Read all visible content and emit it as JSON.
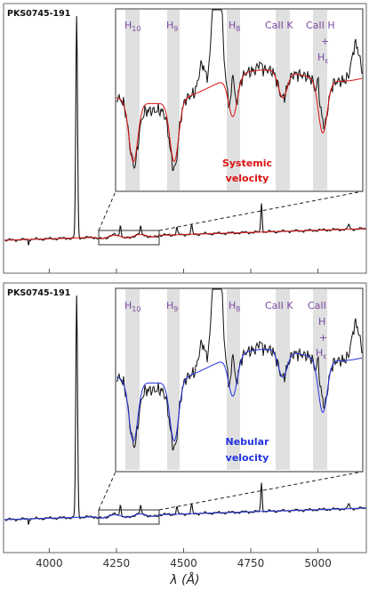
{
  "chart_data": {
    "type": "line",
    "xlabel": "λ (Å)",
    "xticks": [
      4000,
      4250,
      4500,
      4750,
      5000
    ],
    "xlim": [
      3830,
      5180
    ],
    "zoom_range": [
      4170,
      4410
    ],
    "panels": [
      {
        "object": "PKS0745-191",
        "velocity_label": [
          "Systemic",
          "velocity"
        ],
        "model_color": "#dd1111",
        "line_labels": [
          {
            "text": "H",
            "sub": "10"
          },
          {
            "text": "H",
            "sub": "9"
          },
          {
            "text": "H",
            "sub": "8"
          },
          {
            "text": "CaII K",
            "sub": ""
          },
          {
            "text": "CaII H",
            "sub": ""
          },
          {
            "text": "+",
            "sub": ""
          },
          {
            "text": "H",
            "sub": "ε"
          }
        ]
      },
      {
        "object": "PKS0745-191",
        "velocity_label": [
          "Nebular",
          "velocity"
        ],
        "model_color": "#2233dd",
        "line_labels": [
          {
            "text": "H",
            "sub": "10"
          },
          {
            "text": "H",
            "sub": "9"
          },
          {
            "text": "H",
            "sub": "8"
          },
          {
            "text": "CaII K",
            "sub": ""
          },
          {
            "text": "CaII",
            "sub": ""
          },
          {
            "text": "H",
            "sub": ""
          },
          {
            "text": "+",
            "sub": ""
          },
          {
            "text": "H",
            "sub": "ε"
          }
        ]
      }
    ],
    "emission_lines": [
      {
        "x": 4102,
        "peak": 248
      },
      {
        "x": 4265,
        "peak": 14
      },
      {
        "x": 4340,
        "peak": 8
      },
      {
        "x": 4475,
        "peak": 8
      },
      {
        "x": 4530,
        "peak": 10
      },
      {
        "x": 4790,
        "peak": 33
      },
      {
        "x": 5115,
        "peak": 6
      }
    ]
  }
}
